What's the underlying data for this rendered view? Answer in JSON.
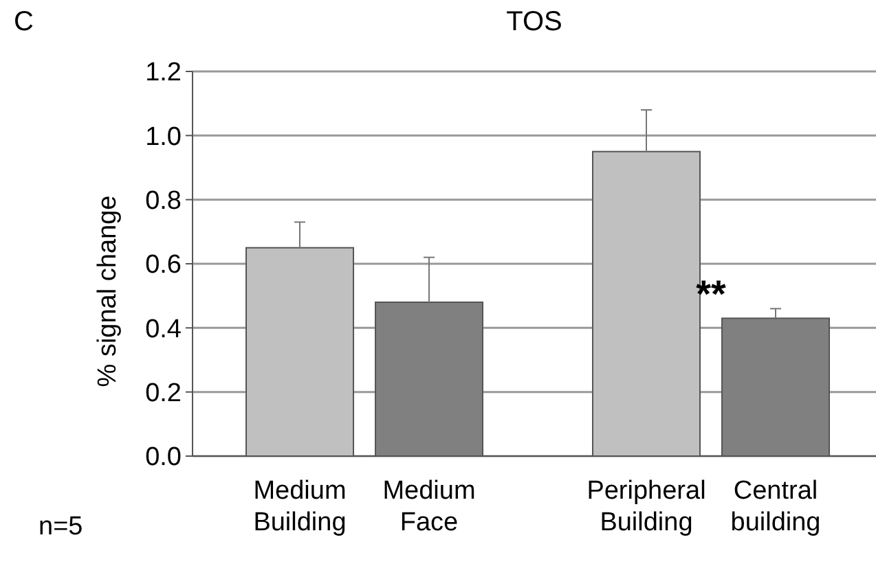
{
  "chart_data": {
    "type": "bar",
    "title": "TOS",
    "ylabel": "% signal change",
    "categories": [
      "Medium\nBuilding",
      "Medium\nFace",
      "Peripheral\nBuilding",
      "Central\nbuilding"
    ],
    "values": [
      0.65,
      0.48,
      0.95,
      0.43
    ],
    "colors": [
      "#c0c0c0",
      "#808080",
      "#c0c0c0",
      "#808080"
    ],
    "errors": [
      [
        0.65,
        0.73
      ],
      [
        0.48,
        0.62
      ],
      [
        0.95,
        1.08
      ],
      [
        0.43,
        0.46
      ]
    ],
    "ylim": [
      0,
      1.2
    ],
    "yticks": [
      {
        "value": 0,
        "label": "0.0"
      },
      {
        "value": 0.2,
        "label": "0.2"
      },
      {
        "value": 0.4,
        "label": "0.4"
      },
      {
        "value": 0.6,
        "label": "0.6"
      },
      {
        "value": 0.8,
        "label": "0.8"
      },
      {
        "value": 1,
        "label": "1.0"
      },
      {
        "value": 1.2,
        "label": "1.2"
      }
    ],
    "grid": "y",
    "annotations": [
      "C",
      "n=5",
      "**"
    ]
  }
}
